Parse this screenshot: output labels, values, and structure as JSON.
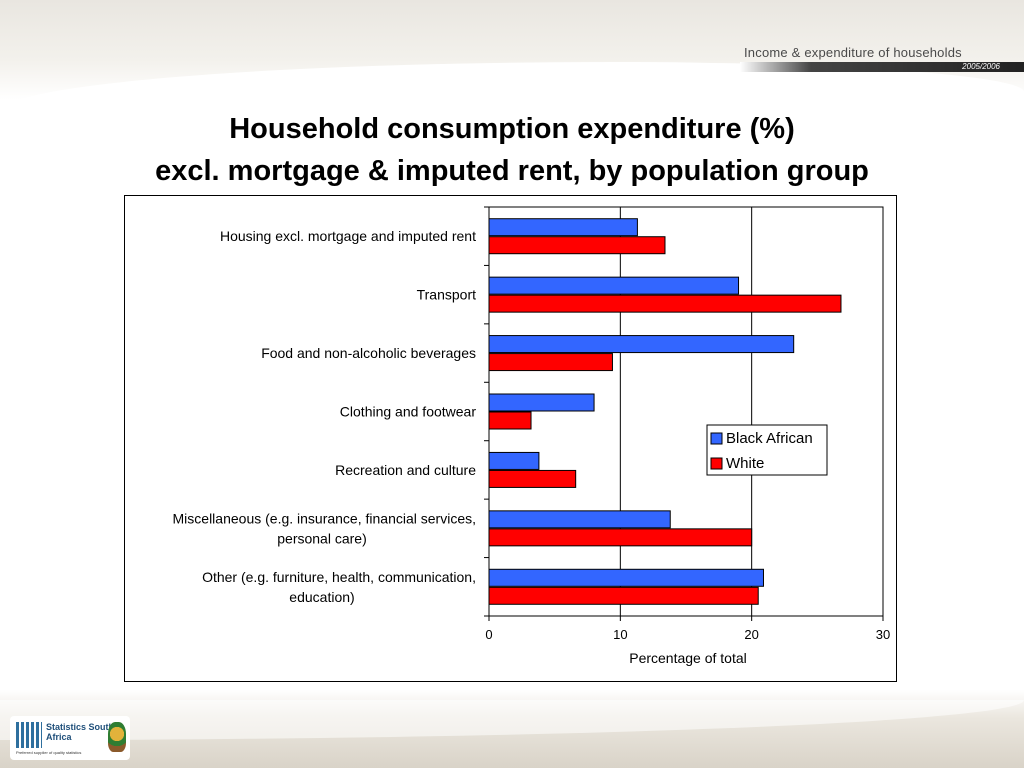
{
  "header": {
    "report_title": "Income & expenditure of households",
    "report_years": "2005/2006"
  },
  "page": {
    "title_line1": "Household consumption expenditure (%)",
    "title_line2": "excl. mortgage & imputed rent, by population group"
  },
  "logo": {
    "name": "Statistics South Africa",
    "tagline": "Preferred supplier of quality statistics"
  },
  "colors": {
    "black_african": "#3366FF",
    "white": "#FF0000"
  },
  "chart_data": {
    "type": "bar",
    "orientation": "horizontal",
    "categories": [
      "Housing excl. mortgage and imputed rent",
      "Transport",
      "Food and non-alcoholic beverages",
      "Clothing and footwear",
      "Recreation and culture",
      "Miscellaneous (e.g. insurance, financial services, personal care)",
      "Other (e.g. furniture, health, communication, education)"
    ],
    "category_label_lines": [
      [
        "Housing excl. mortgage and imputed rent"
      ],
      [
        "Transport"
      ],
      [
        "Food and non-alcoholic beverages"
      ],
      [
        "Clothing and footwear"
      ],
      [
        "Recreation and culture"
      ],
      [
        "Miscellaneous (e.g. insurance, financial services,",
        "personal care)"
      ],
      [
        "Other (e.g. furniture, health, communication,",
        "education)"
      ]
    ],
    "series": [
      {
        "name": "Black African",
        "color": "#3366FF",
        "values": [
          11.3,
          19.0,
          23.2,
          8.0,
          3.8,
          13.8,
          20.9
        ]
      },
      {
        "name": "White",
        "color": "#FF0000",
        "values": [
          13.4,
          26.8,
          9.4,
          3.2,
          6.6,
          20.0,
          20.5
        ]
      }
    ],
    "xlabel": "Percentage of total",
    "ylabel": "",
    "xlim": [
      0,
      30
    ],
    "xticks": [
      0,
      10,
      20,
      30
    ],
    "grid": "vertical major gridlines",
    "legend": "right"
  }
}
